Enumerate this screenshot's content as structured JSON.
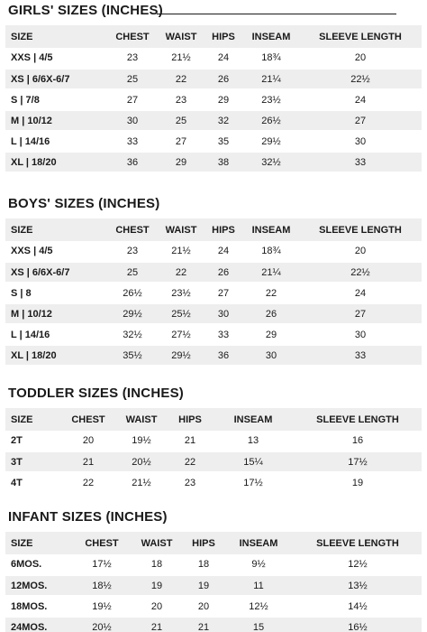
{
  "sections": [
    {
      "title": "GIRLS' SIZES (INCHES)",
      "headers": [
        "SIZE",
        "CHEST",
        "WAIST",
        "HIPS",
        "INSEAM",
        "SLEEVE LENGTH"
      ],
      "rows": [
        [
          "XXS | 4/5",
          "23",
          "21½",
          "24",
          "18¾",
          "20"
        ],
        [
          "XS | 6/6X-6/7",
          "25",
          "22",
          "26",
          "21¼",
          "22½"
        ],
        [
          "S | 7/8",
          "27",
          "23",
          "29",
          "23½",
          "24"
        ],
        [
          "M | 10/12",
          "30",
          "25",
          "32",
          "26½",
          "27"
        ],
        [
          "L | 14/16",
          "33",
          "27",
          "35",
          "29½",
          "30"
        ],
        [
          "XL | 18/20",
          "36",
          "29",
          "38",
          "32½",
          "33"
        ]
      ]
    },
    {
      "title": "BOYS' SIZES (INCHES)",
      "headers": [
        "SIZE",
        "CHEST",
        "WAIST",
        "HIPS",
        "INSEAM",
        "SLEEVE LENGTH"
      ],
      "rows": [
        [
          "XXS | 4/5",
          "23",
          "21½",
          "24",
          "18¾",
          "20"
        ],
        [
          "XS | 6/6X-6/7",
          "25",
          "22",
          "26",
          "21¼",
          "22½"
        ],
        [
          "S | 8",
          "26½",
          "23½",
          "27",
          "22",
          "24"
        ],
        [
          "M | 10/12",
          "29½",
          "25½",
          "30",
          "26",
          "27"
        ],
        [
          "L | 14/16",
          "32½",
          "27½",
          "33",
          "29",
          "30"
        ],
        [
          "XL | 18/20",
          "35½",
          "29½",
          "36",
          "30",
          "33"
        ]
      ]
    },
    {
      "title": "TODDLER SIZES (INCHES)",
      "headers": [
        "SIZE",
        "CHEST",
        "WAIST",
        "HIPS",
        "INSEAM",
        "SLEEVE LENGTH"
      ],
      "rows": [
        [
          "2T",
          "20",
          "19½",
          "21",
          "13",
          "16"
        ],
        [
          "3T",
          "21",
          "20½",
          "22",
          "15¼",
          "17½"
        ],
        [
          "4T",
          "22",
          "21½",
          "23",
          "17½",
          "19"
        ]
      ]
    },
    {
      "title": "INFANT SIZES (INCHES)",
      "headers": [
        "SIZE",
        "CHEST",
        "WAIST",
        "HIPS",
        "INSEAM",
        "SLEEVE LENGTH"
      ],
      "rows": [
        [
          "6MOS.",
          "17½",
          "18",
          "18",
          "9½",
          "12½"
        ],
        [
          "12MOS.",
          "18½",
          "19",
          "19",
          "11",
          "13½"
        ],
        [
          "18MOS.",
          "19½",
          "20",
          "20",
          "12½",
          "14½"
        ],
        [
          "24MOS.",
          "20½",
          "21",
          "21",
          "15",
          "16½"
        ]
      ]
    }
  ]
}
